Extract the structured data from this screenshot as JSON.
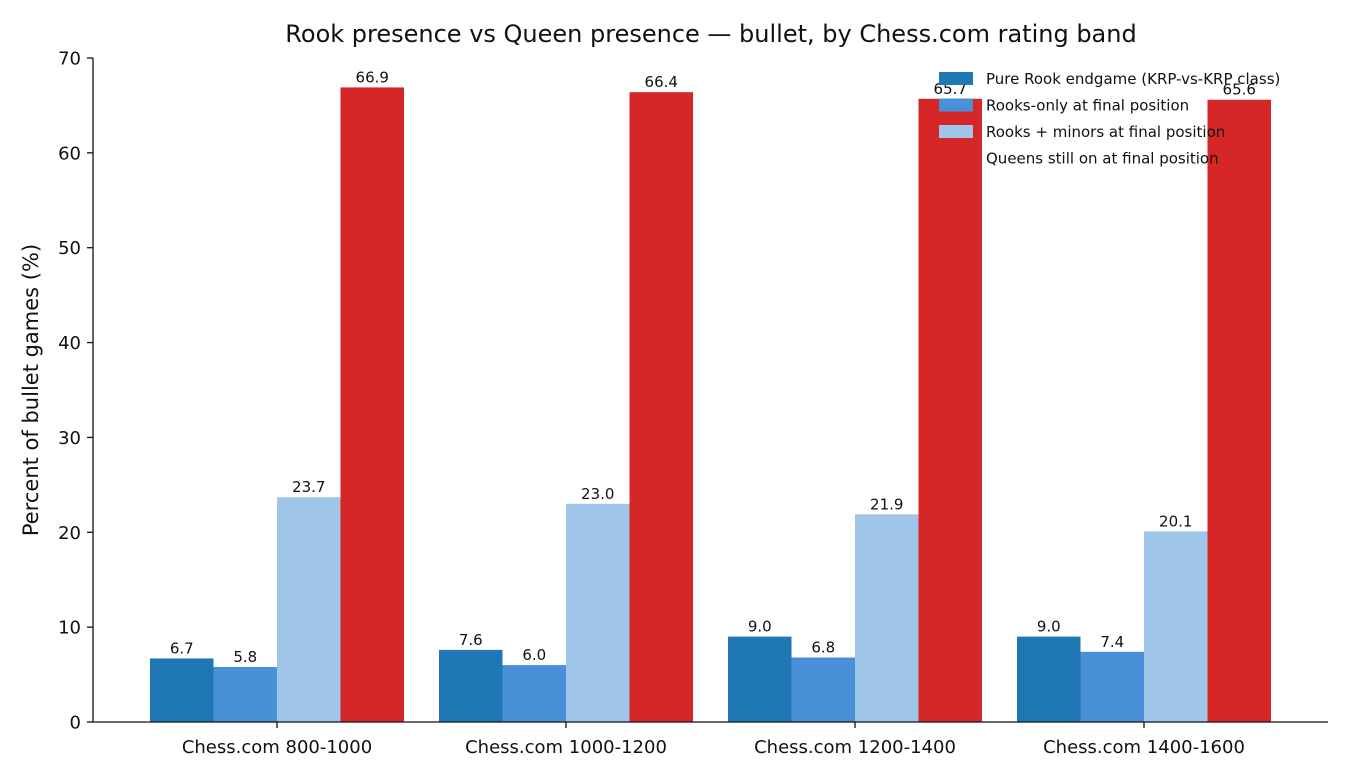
{
  "chart_data": {
    "type": "bar",
    "title": "Rook presence vs Queen presence — bullet, by Chess.com rating band",
    "xlabel": "",
    "ylabel": "Percent of bullet games (%)",
    "ylim": [
      0,
      70
    ],
    "yticks": [
      0,
      10,
      20,
      30,
      40,
      50,
      60,
      70
    ],
    "grid": false,
    "legend_position": "top-right",
    "categories": [
      "Chess.com 800-1000",
      "Chess.com 1000-1200",
      "Chess.com 1200-1400",
      "Chess.com 1400-1600"
    ],
    "series": [
      {
        "name": "Pure Rook endgame (KRP-vs-KRP class)",
        "color": "#1f77b4",
        "values": [
          6.7,
          7.6,
          9.0,
          9.0
        ]
      },
      {
        "name": "Rooks-only at final position",
        "color": "#4a90d9",
        "values": [
          5.8,
          6.0,
          6.8,
          7.4
        ]
      },
      {
        "name": "Rooks + minors at final position",
        "color": "#9fc5e8",
        "values": [
          23.7,
          23.0,
          21.9,
          20.1
        ]
      },
      {
        "name": "Queens still on at final position",
        "color": "#d62728",
        "values": [
          66.9,
          66.4,
          65.7,
          65.6
        ]
      }
    ]
  }
}
